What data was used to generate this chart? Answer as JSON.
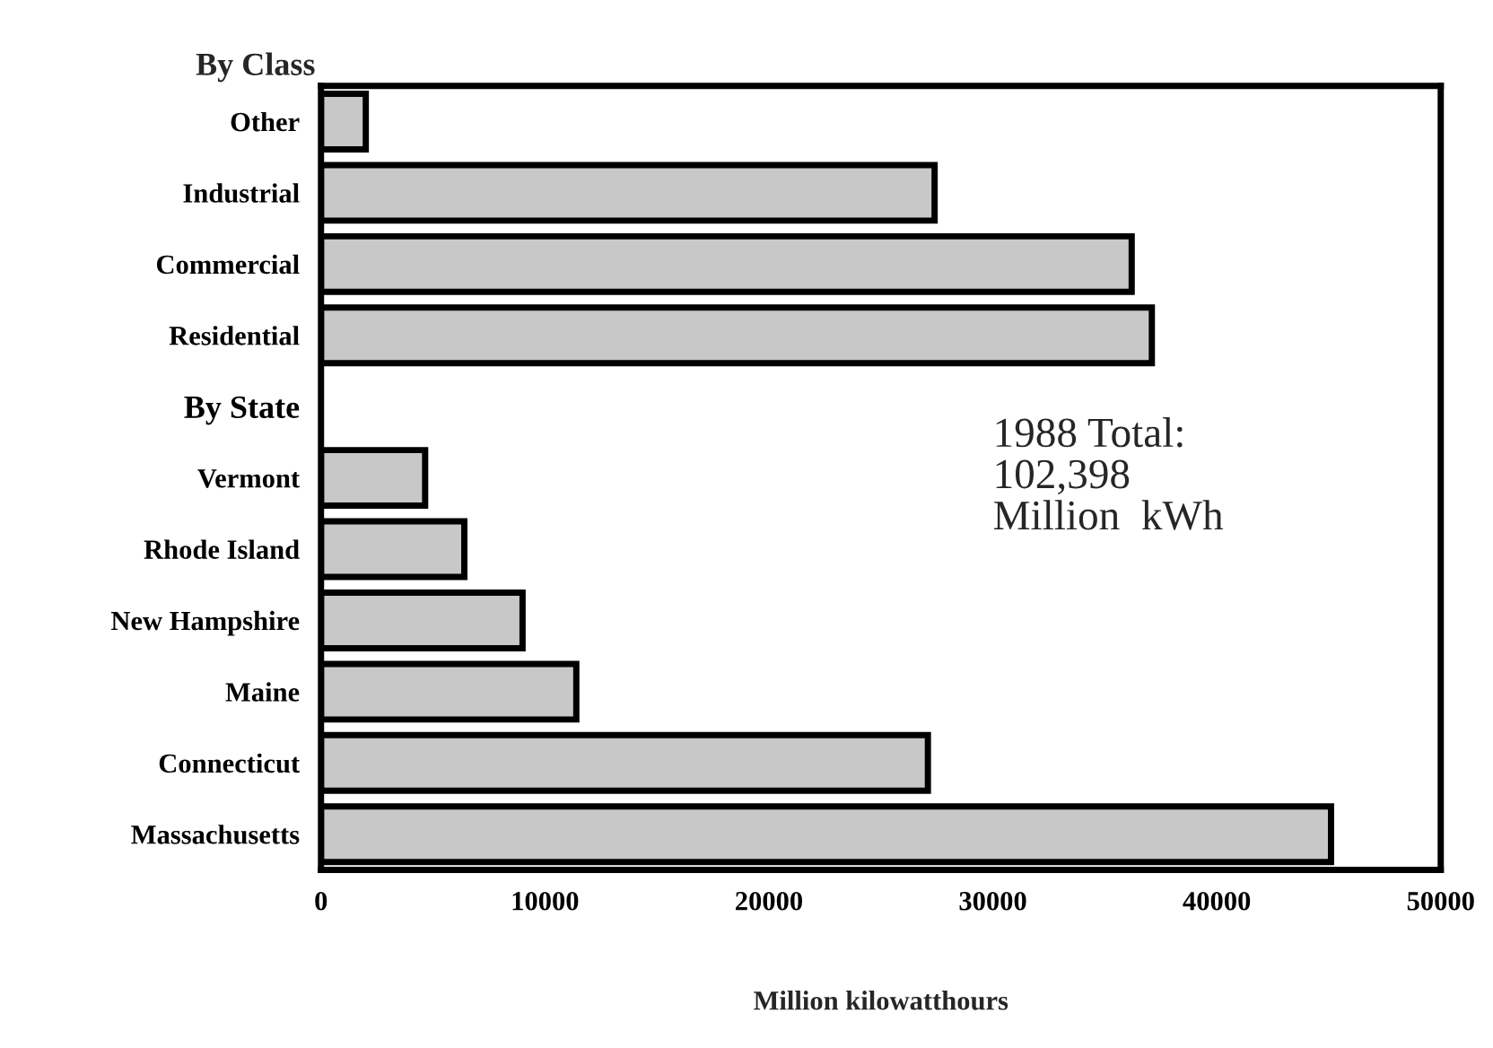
{
  "chart_data": {
    "type": "bar",
    "orientation": "horizontal",
    "xlabel": "Million kilowatthours",
    "categories": [
      "Other",
      "Industrial",
      "Commercial",
      "Residential",
      "By State",
      "Vermont",
      "Rhode Island",
      "New Hampshire",
      "Maine",
      "Connecticut",
      "Massachusetts"
    ],
    "values": [
      2000,
      27400,
      36200,
      37100,
      null,
      4650,
      6400,
      9000,
      11400,
      27100,
      45100
    ],
    "color": "#c8c8c8",
    "xlim": [
      0,
      50000
    ],
    "xticks": [
      0,
      10000,
      20000,
      30000,
      40000,
      50000
    ],
    "grid": false,
    "legend": false,
    "annotations": [
      "By Class",
      "1988 Total:\n102,398\nMillion  kWh"
    ]
  }
}
